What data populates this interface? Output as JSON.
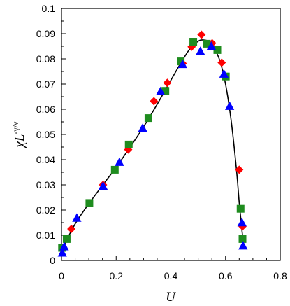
{
  "chart_data": {
    "type": "scatter",
    "title": "",
    "xlabel": "U",
    "ylabel": {
      "base": "χL",
      "superscript": "-γ/ν"
    },
    "xlim": [
      0,
      0.8
    ],
    "ylim": [
      0,
      0.1
    ],
    "xticks": [
      "0",
      "0.2",
      "0.4",
      "0.6",
      "0.8"
    ],
    "yticks": [
      "0",
      "0.01",
      "0.02",
      "0.03",
      "0.04",
      "0.05",
      "0.06",
      "0.07",
      "0.08",
      "0.09",
      "0.1"
    ],
    "grid": false,
    "legend": "none",
    "series": [
      {
        "marker": "diamond",
        "color": "#ff0000",
        "x": [
          0.005,
          0.036,
          0.152,
          0.244,
          0.338,
          0.387,
          0.443,
          0.476,
          0.512,
          0.551,
          0.586,
          0.65,
          0.662
        ],
        "y": [
          0.0045,
          0.0125,
          0.03,
          0.044,
          0.0632,
          0.0705,
          0.0782,
          0.0848,
          0.0896,
          0.0862,
          0.0785,
          0.036,
          0.0135
        ]
      },
      {
        "marker": "square",
        "color": "#1e8c1e",
        "x": [
          0.002,
          0.019,
          0.102,
          0.195,
          0.246,
          0.318,
          0.38,
          0.436,
          0.482,
          0.531,
          0.57,
          0.601,
          0.655,
          0.662
        ],
        "y": [
          0.005,
          0.0085,
          0.0228,
          0.036,
          0.046,
          0.0565,
          0.0673,
          0.079,
          0.0868,
          0.086,
          0.0835,
          0.073,
          0.0205,
          0.0085
        ]
      },
      {
        "marker": "triangle",
        "color": "#0000ff",
        "x": [
          0.003,
          0.01,
          0.056,
          0.152,
          0.212,
          0.297,
          0.362,
          0.443,
          0.508,
          0.548,
          0.594,
          0.615,
          0.66,
          0.664
        ],
        "y": [
          0.003,
          0.0055,
          0.0168,
          0.0295,
          0.039,
          0.0525,
          0.067,
          0.0778,
          0.083,
          0.085,
          0.074,
          0.0612,
          0.015,
          0.0058
        ]
      }
    ],
    "curve": {
      "color": "#000000",
      "x": [
        0.0,
        0.05,
        0.1,
        0.15,
        0.2,
        0.25,
        0.3,
        0.35,
        0.4,
        0.44,
        0.47,
        0.5,
        0.52,
        0.54,
        0.56,
        0.58,
        0.6,
        0.62,
        0.64,
        0.65,
        0.66,
        0.667
      ],
      "y": [
        0.004,
        0.0145,
        0.0225,
        0.0298,
        0.037,
        0.0448,
        0.053,
        0.062,
        0.0715,
        0.079,
        0.084,
        0.087,
        0.0875,
        0.0868,
        0.084,
        0.079,
        0.07,
        0.056,
        0.036,
        0.023,
        0.012,
        0.0055
      ]
    }
  }
}
